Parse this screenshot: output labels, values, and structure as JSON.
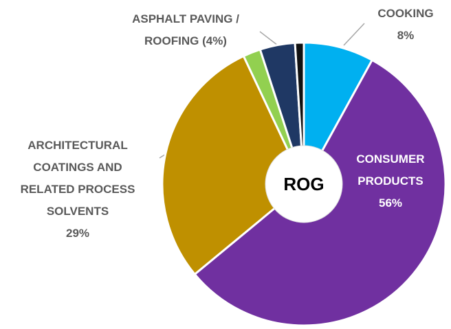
{
  "chart_data": {
    "type": "pie",
    "center_label": "ROG",
    "categories": [
      "COOKING",
      "CONSUMER PRODUCTS",
      "ARCHITECTURAL COATINGS AND RELATED PROCESS SOLVENTS",
      null,
      "ASPHALT PAVING / ROOFING",
      null
    ],
    "values": [
      8,
      56,
      29,
      2,
      4,
      1
    ],
    "value_labels": [
      "8%",
      "56%",
      "29%",
      null,
      "(4%)",
      null
    ],
    "colors": [
      "#00b0f0",
      "#7030a0",
      "#bf9000",
      "#92d050",
      "#1f3864",
      "#111111"
    ]
  }
}
